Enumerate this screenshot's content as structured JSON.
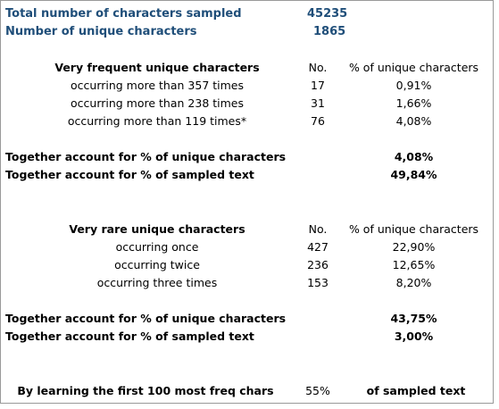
{
  "summary": {
    "total_label": "Total number of characters sampled",
    "total_value": "45235",
    "unique_label": "Number of unique characters",
    "unique_value": "1865"
  },
  "frequent": {
    "heading": "Very frequent unique characters",
    "col_no": "No.",
    "col_pct": "% of unique characters",
    "rows": [
      {
        "label": "occurring more than 357 times",
        "no": "17",
        "pct": "0,91%"
      },
      {
        "label": "occurring more than 238 times",
        "no": "31",
        "pct": "1,66%"
      },
      {
        "label": "occurring more than 119 times*",
        "no": "76",
        "pct": "4,08%"
      }
    ],
    "together_unique_label": "Together account for % of unique characters",
    "together_unique_value": "4,08%",
    "together_text_label": "Together account for % of sampled text",
    "together_text_value": "49,84%"
  },
  "rare": {
    "heading": "Very rare unique characters",
    "col_no": "No.",
    "col_pct": "% of unique characters",
    "rows": [
      {
        "label": "occurring once",
        "no": "427",
        "pct": "22,90%"
      },
      {
        "label": "occurring twice",
        "no": "236",
        "pct": "12,65%"
      },
      {
        "label": "occurring three times",
        "no": "153",
        "pct": "8,20%"
      }
    ],
    "together_unique_label": "Together account for % of unique characters",
    "together_unique_value": "43,75%",
    "together_text_label": "Together account for % of sampled text",
    "together_text_value": "3,00%"
  },
  "footer": {
    "label": "By learning the first 100 most freq chars",
    "value": "55%",
    "suffix": "of sampled text"
  }
}
